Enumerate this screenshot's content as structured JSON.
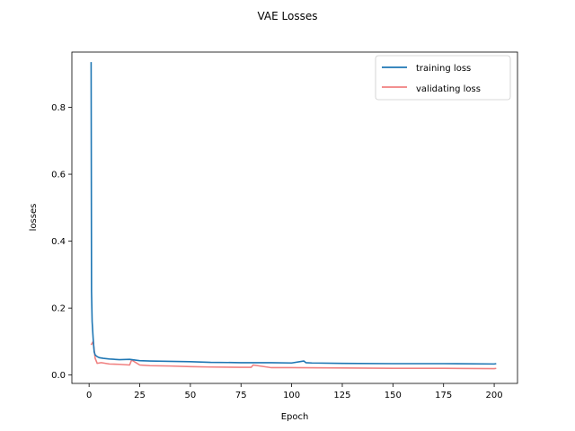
{
  "chart_data": {
    "type": "line",
    "title": "VAE Losses",
    "xlabel": "Epoch",
    "ylabel": "losses",
    "xlim": [
      -8.5,
      211.5
    ],
    "ylim": [
      -0.025,
      0.965
    ],
    "xticks": [
      0,
      25,
      50,
      75,
      100,
      125,
      150,
      175,
      200
    ],
    "yticks": [
      0.0,
      0.2,
      0.4,
      0.6,
      0.8
    ],
    "ytick_labels": [
      "0.0",
      "0.2",
      "0.4",
      "0.6",
      "0.8"
    ],
    "grid": false,
    "legend_position": "top-right",
    "series": [
      {
        "name": "training loss",
        "color": "#1f77b4",
        "x": [
          1,
          1.2,
          1.5,
          2,
          2.5,
          3,
          4,
          5,
          7,
          10,
          15,
          20,
          25,
          30,
          40,
          50,
          60,
          75,
          90,
          100,
          106,
          107,
          110,
          125,
          150,
          175,
          200,
          201
        ],
        "y": [
          0.935,
          0.25,
          0.16,
          0.11,
          0.07,
          0.06,
          0.055,
          0.052,
          0.05,
          0.048,
          0.046,
          0.047,
          0.043,
          0.042,
          0.041,
          0.04,
          0.038,
          0.037,
          0.037,
          0.036,
          0.042,
          0.037,
          0.036,
          0.035,
          0.034,
          0.034,
          0.033,
          0.034
        ]
      },
      {
        "name": "validating loss",
        "color": "#f08080",
        "x": [
          1,
          2,
          3,
          4,
          6,
          10,
          15,
          20,
          21,
          25,
          30,
          40,
          50,
          60,
          75,
          80,
          81,
          90,
          100,
          125,
          150,
          175,
          200,
          201
        ],
        "y": [
          0.09,
          0.1,
          0.05,
          0.035,
          0.037,
          0.033,
          0.032,
          0.03,
          0.045,
          0.03,
          0.028,
          0.027,
          0.025,
          0.024,
          0.023,
          0.023,
          0.03,
          0.022,
          0.022,
          0.021,
          0.02,
          0.02,
          0.019,
          0.02
        ]
      }
    ]
  }
}
